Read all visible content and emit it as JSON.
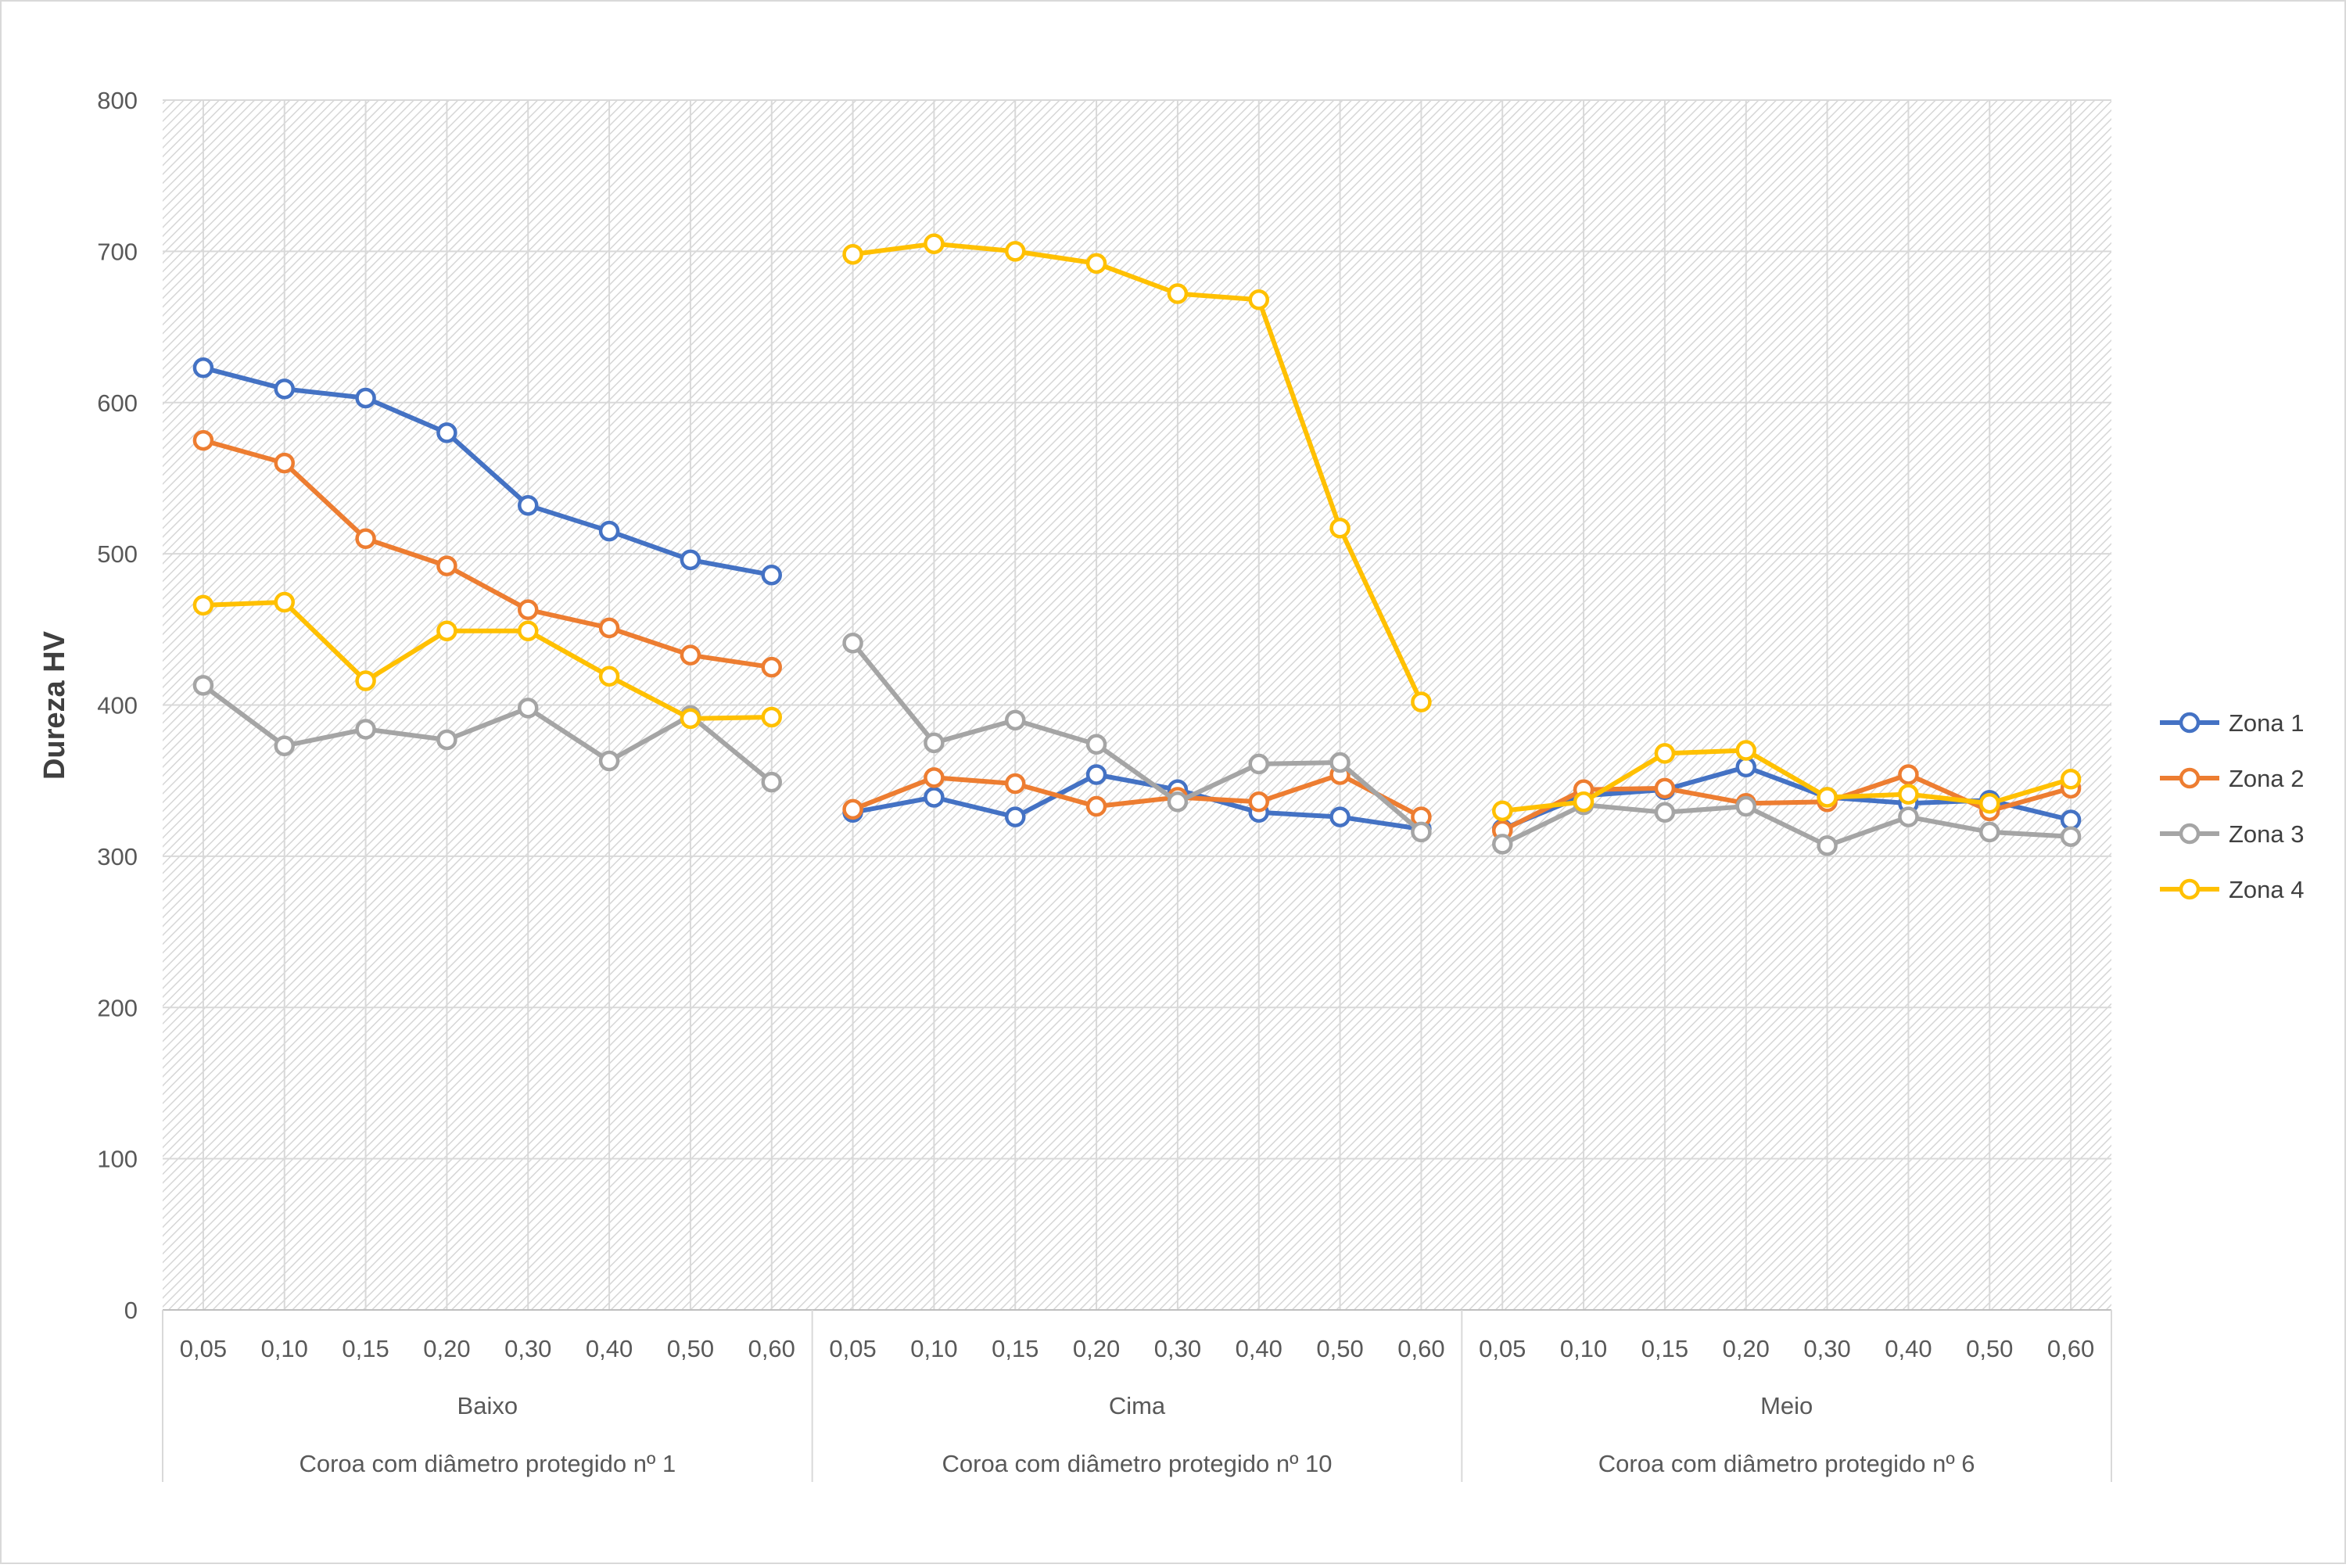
{
  "chart_data": {
    "type": "line",
    "title": "",
    "xlabel": "",
    "ylabel": "Dureza HV",
    "ylim": [
      0,
      800
    ],
    "yticks": [
      0,
      100,
      200,
      300,
      400,
      500,
      600,
      700,
      800
    ],
    "grid": true,
    "legend": "right",
    "groups": [
      {
        "label": "Baixo",
        "sample": "Coroa com diâmetro protegido  nº 1"
      },
      {
        "label": "Cima",
        "sample": "Coroa com diâmetro protegido  nº 10"
      },
      {
        "label": "Meio",
        "sample": "Coroa com diâmetro protegido  nº 6"
      }
    ],
    "categories": [
      "0,05",
      "0,10",
      "0,15",
      "0,20",
      "0,30",
      "0,40",
      "0,50",
      "0,60"
    ],
    "series": [
      {
        "name": "Zona 1",
        "color": "#4472C4",
        "values": [
          [
            623,
            609,
            603,
            580,
            532,
            515,
            496,
            486
          ],
          [
            329,
            339,
            326,
            354,
            344,
            329,
            326,
            318
          ],
          [
            318,
            340,
            344,
            359,
            339,
            335,
            337,
            324
          ]
        ]
      },
      {
        "name": "Zona 2",
        "color": "#ED7D31",
        "values": [
          [
            575,
            560,
            510,
            492,
            463,
            451,
            433,
            425
          ],
          [
            331,
            352,
            348,
            333,
            339,
            336,
            354,
            326
          ],
          [
            317,
            344,
            345,
            335,
            336,
            354,
            330,
            345
          ]
        ]
      },
      {
        "name": "Zona 3",
        "color": "#A5A5A5",
        "values": [
          [
            413,
            373,
            384,
            377,
            398,
            363,
            393,
            349
          ],
          [
            441,
            375,
            390,
            374,
            336,
            361,
            362,
            316
          ],
          [
            308,
            334,
            329,
            333,
            307,
            326,
            316,
            313
          ]
        ]
      },
      {
        "name": "Zona 4",
        "color": "#FFC000",
        "values": [
          [
            466,
            468,
            416,
            449,
            449,
            419,
            391,
            392
          ],
          [
            698,
            705,
            700,
            692,
            672,
            668,
            517,
            402
          ],
          [
            330,
            336,
            368,
            370,
            339,
            341,
            335,
            351
          ]
        ]
      }
    ]
  }
}
